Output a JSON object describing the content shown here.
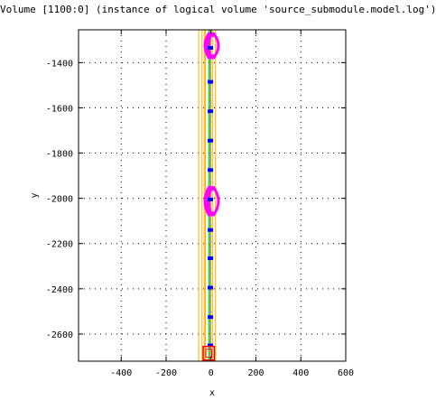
{
  "title": "Volume [1100:0] (instance of logical volume 'source_submodule.model.log')",
  "chart_data": {
    "type": "scatter",
    "xlabel": "x",
    "ylabel": "y",
    "xlim": [
      -590,
      600
    ],
    "ylim": [
      -2720,
      -1255
    ],
    "xticks": [
      -400,
      -200,
      0,
      200,
      400,
      600
    ],
    "yticks": [
      -1400,
      -1600,
      -1800,
      -2000,
      -2200,
      -2400,
      -2600
    ],
    "grid": true,
    "outline_color": "#ffb000",
    "guide_line_color": "#00bb00",
    "magnet_color": "#ff00ff",
    "marker_color": "#0000ff",
    "end_box_color": "#ff0000",
    "outer_body_x": [
      -55,
      20
    ],
    "inner_strips_x": [
      -40,
      -30,
      -25,
      0,
      8
    ],
    "guide_lines_x": [
      -10,
      -4
    ],
    "dashed_line_x": -3,
    "magnets": [
      {
        "y_top": -1270,
        "y_bottom": -1380
      },
      {
        "y_top": -1950,
        "y_bottom": -2075
      }
    ],
    "marker_y": [
      -1335,
      -1485,
      -1615,
      -1745,
      -1875,
      -2005,
      -2140,
      -2265,
      -2395,
      -2525,
      -2650
    ],
    "marker_x": -3,
    "end_box": {
      "x": [
        -35,
        15
      ],
      "y": [
        -2655,
        -2715
      ]
    }
  }
}
